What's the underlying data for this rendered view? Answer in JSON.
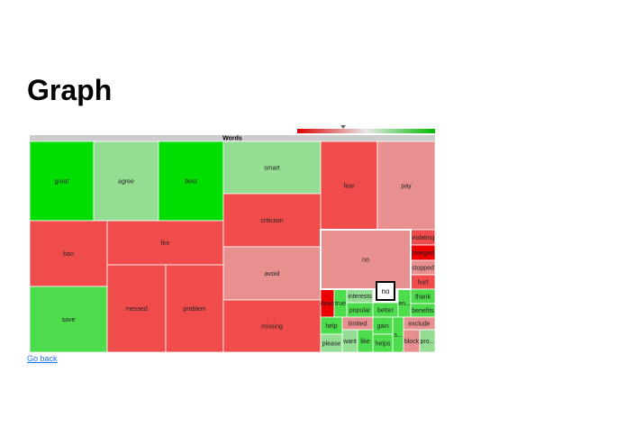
{
  "page": {
    "title": "Graph",
    "back_link": "Go back"
  },
  "colors": {
    "strong_green": "#00dd00",
    "green": "#4cdc4c",
    "light_green": "#93de93",
    "red": "#f04c4c",
    "light_red": "#e89090",
    "strong_red": "#ee0000",
    "header_gray": "#cccccc"
  },
  "chart_data": {
    "type": "treemap",
    "root_label": "Words",
    "color_scale": [
      "#dd0000",
      "#00bb00"
    ],
    "hover_tooltip": "no",
    "nodes": [
      {
        "label": "great",
        "color": "strong_green"
      },
      {
        "label": "agree",
        "color": "light_green"
      },
      {
        "label": "best",
        "color": "strong_green"
      },
      {
        "label": "smart",
        "color": "light_green"
      },
      {
        "label": "fear",
        "color": "red"
      },
      {
        "label": "pay",
        "color": "light_red"
      },
      {
        "label": "ban",
        "color": "red"
      },
      {
        "label": "fire",
        "color": "red"
      },
      {
        "label": "criticism",
        "color": "red"
      },
      {
        "label": "avoid",
        "color": "light_red"
      },
      {
        "label": "save",
        "color": "green"
      },
      {
        "label": "messed",
        "color": "red"
      },
      {
        "label": "problem",
        "color": "red"
      },
      {
        "label": "missing",
        "color": "red"
      },
      {
        "label": "no",
        "color": "light_red"
      },
      {
        "label": "violating",
        "color": "red"
      },
      {
        "label": "charged",
        "color": "strong_red"
      },
      {
        "label": "stopped",
        "color": "light_red"
      },
      {
        "label": "hurt",
        "color": "red"
      },
      {
        "label": "dead",
        "color": "strong_red"
      },
      {
        "label": "true",
        "color": "green"
      },
      {
        "label": "interests",
        "color": "light_green"
      },
      {
        "label": "popular",
        "color": "green"
      },
      {
        "label": "better",
        "color": "green"
      },
      {
        "label": "en...",
        "color": "green"
      },
      {
        "label": "thank",
        "color": "green"
      },
      {
        "label": "benefits",
        "color": "green"
      },
      {
        "label": "help",
        "color": "green"
      },
      {
        "label": "limited",
        "color": "light_red"
      },
      {
        "label": "gain",
        "color": "green"
      },
      {
        "label": "s...",
        "color": "green"
      },
      {
        "label": "exclude",
        "color": "light_red"
      },
      {
        "label": "please",
        "color": "light_green"
      },
      {
        "label": "want",
        "color": "light_green"
      },
      {
        "label": "like",
        "color": "green"
      },
      {
        "label": "helps",
        "color": "green"
      },
      {
        "label": "block",
        "color": "light_red"
      },
      {
        "label": "pro...",
        "color": "light_green"
      }
    ]
  }
}
